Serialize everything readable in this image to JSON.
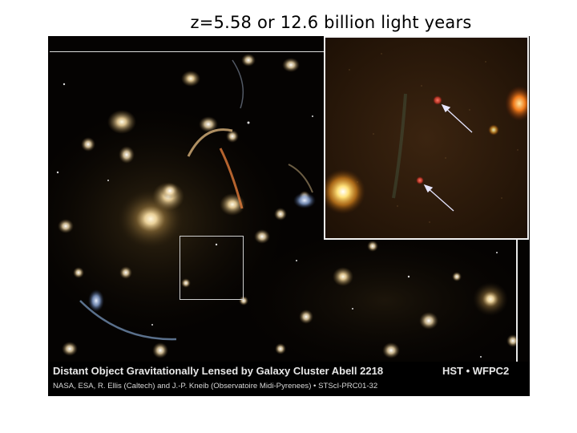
{
  "slide": {
    "title": "z=5.58 or 12.6 billion light years"
  },
  "photo": {
    "caption_title": "Distant Object Gravitationally Lensed by Galaxy Cluster Abell 2218",
    "caption_instrument": "HST • WFPC2",
    "caption_credit": "NASA, ESA, R. Ellis (Caltech) and J.-P. Kneib (Observatoire Midi-Pyrenees) • STScI-PRC01-32"
  },
  "colors": {
    "slide_background": "#ffffff",
    "sky": "#030201",
    "galaxy_glow": "#f3d9a0",
    "inset_background": "#2a1708",
    "arrow": "#e6e6ff",
    "lensed_image": "#d23a2a"
  }
}
